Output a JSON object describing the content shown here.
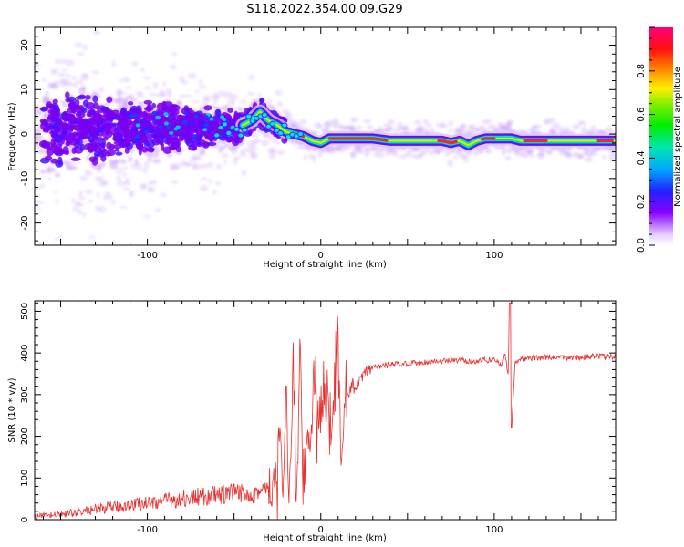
{
  "figure": {
    "title": "S118.2022.354.00.09.G29"
  },
  "chart_data": [
    {
      "type": "heatmap",
      "xlabel": "Height of straight line (km)",
      "ylabel": "Frequency (Hz)",
      "xlim": [
        -165,
        170
      ],
      "ylim": [
        -25,
        24
      ],
      "xticks": [
        -100,
        0,
        100
      ],
      "yticks": [
        -20,
        -10,
        0,
        10,
        20
      ],
      "colorbar": {
        "label": "Normalized spectral amplitude",
        "range": [
          0.0,
          1.0
        ],
        "ticks": [
          0.0,
          0.2,
          0.4,
          0.6,
          0.8
        ],
        "tick_labels": [
          "0.0",
          "0.2",
          "0.4",
          "0.6",
          "0.8"
        ]
      },
      "ridge": {
        "x": [
          -45,
          -40,
          -35,
          -30,
          -25,
          -20,
          -15,
          -10,
          -5,
          0,
          5,
          10,
          20,
          30,
          40,
          50,
          60,
          70,
          75,
          80,
          85,
          90,
          95,
          100,
          110,
          115,
          120,
          130,
          140,
          150,
          160,
          170
        ],
        "frequency": [
          2,
          3,
          5,
          3,
          2,
          0.5,
          0,
          -0.5,
          -1.5,
          -2,
          -1,
          -1,
          -1,
          -1,
          -1.5,
          -1.5,
          -1.5,
          -1.5,
          -2,
          -1.5,
          -2.5,
          -1.5,
          -1,
          -1,
          -1,
          -1.5,
          -1.5,
          -1.5,
          -1.5,
          -1.5,
          -1.5,
          -1.5
        ]
      },
      "grid": false
    },
    {
      "type": "line",
      "xlabel": "Height of straight line (km)",
      "ylabel": "SNR (10 * v/v)",
      "xlim": [
        -165,
        170
      ],
      "ylim": [
        0,
        525
      ],
      "xticks": [
        -100,
        0,
        100
      ],
      "yticks": [
        0,
        100,
        200,
        300,
        400,
        500
      ],
      "color": "#e8302e",
      "series": [
        {
          "x": [
            -165,
            -150,
            -140,
            -130,
            -120,
            -110,
            -100,
            -90,
            -80,
            -70,
            -60,
            -50,
            -40,
            -30,
            -26,
            -24,
            -22,
            -20,
            -18,
            -16,
            -14,
            -12,
            -10,
            -8,
            -6,
            -4,
            -2,
            0,
            2,
            4,
            6,
            8,
            10,
            12,
            14,
            16,
            18,
            20,
            25,
            30,
            40,
            50,
            60,
            70,
            80,
            90,
            100,
            104,
            106,
            108,
            109,
            110,
            112,
            115,
            120,
            130,
            140,
            150,
            160,
            170
          ],
          "y": [
            8,
            12,
            18,
            25,
            30,
            35,
            40,
            45,
            50,
            55,
            58,
            62,
            65,
            70,
            80,
            180,
            100,
            300,
            60,
            380,
            30,
            420,
            20,
            260,
            150,
            380,
            280,
            220,
            250,
            300,
            240,
            260,
            400,
            90,
            320,
            300,
            330,
            310,
            350,
            365,
            372,
            375,
            378,
            380,
            382,
            380,
            385,
            370,
            400,
            350,
            520,
            220,
            380,
            385,
            387,
            390,
            388,
            390,
            392,
            390
          ]
        }
      ],
      "grid": false
    }
  ]
}
